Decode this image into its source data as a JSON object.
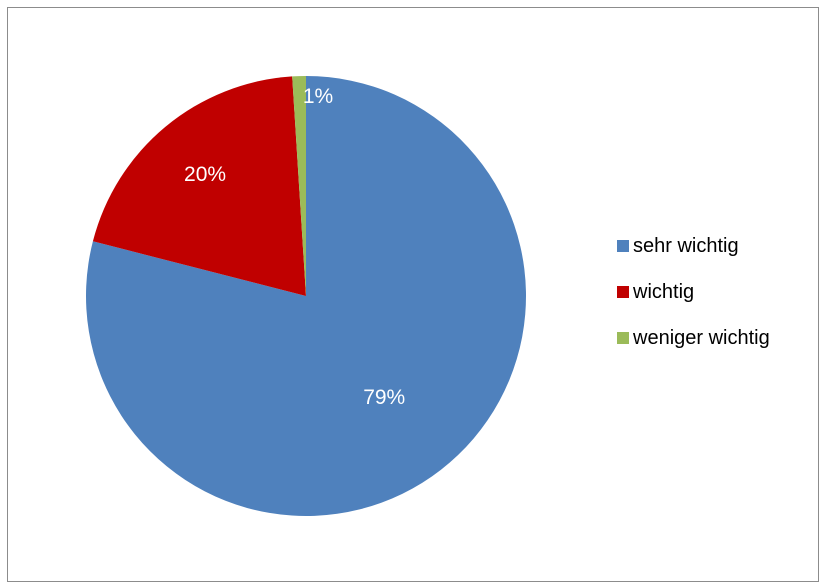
{
  "chart_data": {
    "type": "pie",
    "title": "",
    "categories": [
      "sehr wichtig",
      "wichtig",
      "weniger wichtig"
    ],
    "values": [
      79,
      20,
      1
    ],
    "labels": [
      "79%",
      "20%",
      "1%"
    ],
    "colors": [
      "#4f81bd",
      "#c00000",
      "#9bbb59"
    ],
    "legend": {
      "position": "right",
      "entries": [
        "sehr wichtig",
        "wichtig",
        "weniger wichtig"
      ]
    }
  }
}
